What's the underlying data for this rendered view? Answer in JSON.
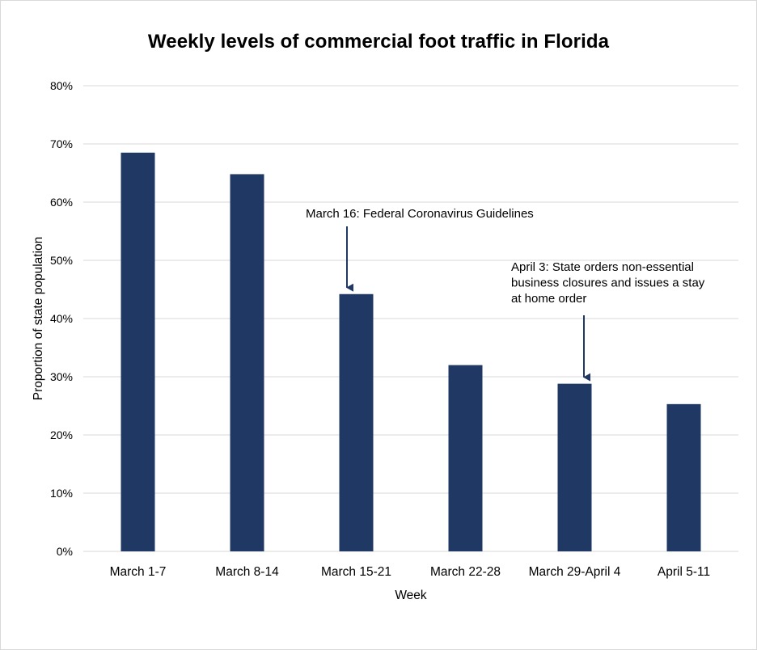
{
  "chart_data": {
    "type": "bar",
    "title": "Weekly levels of commercial foot traffic in Florida",
    "xlabel": "Week",
    "ylabel": "Proportion of state population",
    "categories": [
      "March 1-7",
      "March 8-14",
      "March 15-21",
      "March 22-28",
      "March 29-April 4",
      "April 5-11"
    ],
    "values": [
      68.5,
      64.8,
      44.2,
      32.0,
      28.8,
      25.3
    ],
    "ylim": [
      0,
      80
    ],
    "yticks": [
      "0%",
      "10%",
      "20%",
      "30%",
      "40%",
      "50%",
      "60%",
      "70%",
      "80%"
    ],
    "ytick_values": [
      0,
      10,
      20,
      30,
      40,
      50,
      60,
      70,
      80
    ],
    "grid": true,
    "bar_color": "#1f3864",
    "grid_color": "#d9d9d9",
    "annotations": [
      {
        "category_index": 2,
        "lines": [
          "March 16: Federal Coronavirus Guidelines"
        ]
      },
      {
        "category_index": 4,
        "lines": [
          "April 3: State orders non-essential",
          "business closures and issues a stay",
          "at home order"
        ]
      }
    ]
  }
}
